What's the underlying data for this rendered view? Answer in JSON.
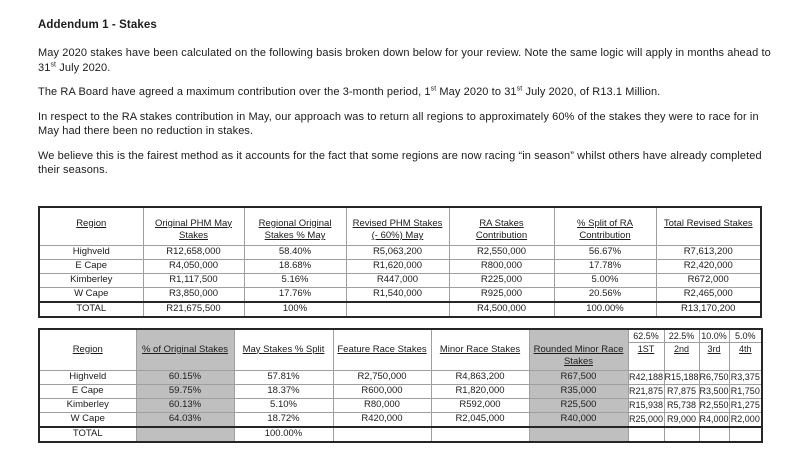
{
  "doc": {
    "title": "Addendum 1 - Stakes"
  },
  "content": {
    "p1": {
      "a": "May 2020 stakes have been calculated on the following basis broken down below for your review. Note the same logic will apply in months ahead to 31",
      "sup": "st",
      "b": " July 2020."
    },
    "p2": {
      "a": "The RA Board have agreed a maximum contribution over the 3-month period, 1",
      "sup1": "st",
      "b": " May 2020 to 31",
      "sup2": "st",
      "c": " July 2020, of R13.1 Million."
    },
    "p3": {
      "text": "In respect to the RA stakes contribution in May, our approach was to return all regions to approximately 60% of the stakes they were to race for in May had there been no reduction in stakes."
    },
    "p4": {
      "text": "We believe this is the fairest method as it accounts for the fact that some regions are now racing “in season” whilst others have already completed their seasons."
    }
  },
  "table1": {
    "columns": [
      "Region",
      "Original PHM May Stakes",
      "Regional Original Stakes % May",
      "Revised PHM Stakes (- 60%) May",
      "RA Stakes Contribution",
      "% Split of RA Contribution",
      "Total Revised Stakes"
    ],
    "rows": [
      [
        "Highveld",
        "R12,658,000",
        "58.40%",
        "R5,063,200",
        "R2,550,000",
        "56.67%",
        "R7,613,200"
      ],
      [
        "E Cape",
        "R4,050,000",
        "18.68%",
        "R1,620,000",
        "R800,000",
        "17.78%",
        "R2,420,000"
      ],
      [
        "Kimberley",
        "R1,117,500",
        "5.16%",
        "R447,000",
        "R225,000",
        "5.00%",
        "R672,000"
      ],
      [
        "W Cape",
        "R3,850,000",
        "17.76%",
        "R1,540,000",
        "R925,000",
        "20.56%",
        "R2,465,000"
      ]
    ],
    "total_row": [
      "TOTAL",
      "R21,675,500",
      "100%",
      "",
      "R4,500,000",
      "100.00%",
      "R13,170,200"
    ]
  },
  "table2": {
    "percent_row": [
      "",
      "",
      "",
      "",
      "",
      "",
      "62.5%",
      "22.5%",
      "10.0%",
      "5.0%"
    ],
    "columns": [
      "Region",
      "% of Original Stakes",
      "May Stakes % Split",
      "Feature Race Stakes",
      "Minor Race Stakes",
      "Rounded Minor Race Stakes",
      "1ST",
      "2nd",
      "3rd",
      "4th"
    ],
    "rows": [
      [
        "Highveld",
        "60.15%",
        "57.81%",
        "R2,750,000",
        "R4,863,200",
        "R67,500",
        "R42,188",
        "R15,188",
        "R6,750",
        "R3,375"
      ],
      [
        "E Cape",
        "59.75%",
        "18.37%",
        "R600,000",
        "R1,820,000",
        "R35,000",
        "R21,875",
        "R7,875",
        "R3,500",
        "R1,750"
      ],
      [
        "Kimberley",
        "60.13%",
        "5.10%",
        "R80,000",
        "R592,000",
        "R25,500",
        "R15,938",
        "R5,738",
        "R2,550",
        "R1,275"
      ],
      [
        "W Cape",
        "64.03%",
        "18.72%",
        "R420,000",
        "R2,045,000",
        "R40,000",
        "R25,000",
        "R9,000",
        "R4,000",
        "R2,000"
      ]
    ],
    "total_row": [
      "TOTAL",
      "",
      "100.00%",
      "",
      "",
      "",
      "",
      "",
      "",
      ""
    ],
    "gray_columns": [
      1,
      5
    ]
  },
  "colors": {
    "shaded_column": "#bfbfbf",
    "border_dark": "#262626",
    "border_light": "#9f9f9f"
  }
}
